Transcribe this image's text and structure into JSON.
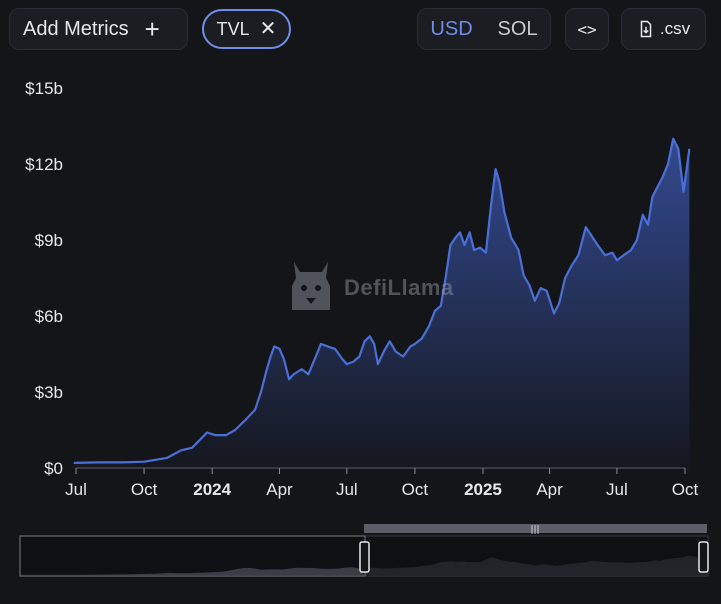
{
  "toolbar": {
    "add_metrics_label": "Add Metrics",
    "add_metrics_icon": "plus-icon",
    "metric_chip_label": "TVL",
    "metric_chip_icon": "close-icon",
    "currency_options": [
      "USD",
      "SOL"
    ],
    "currency_selected": "USD",
    "embed_icon": "code-icon",
    "embed_label": "<>",
    "csv_icon": "file-download-icon",
    "csv_label": ".csv"
  },
  "watermark": {
    "text": "DefiLlama",
    "icon": "llama-logo"
  },
  "colors": {
    "accent": "#6f8ee6",
    "line": "#4a6fd8",
    "background": "#141519"
  },
  "chart_data": {
    "type": "area",
    "title": "",
    "xlabel": "",
    "ylabel": "",
    "ylim": [
      0,
      15
    ],
    "y_ticks": [
      0,
      3,
      6,
      9,
      12,
      15
    ],
    "y_tick_labels": [
      "$0",
      "$3b",
      "$6b",
      "$9b",
      "$12b",
      "$15b"
    ],
    "x_ticks": [
      "2023-07-01",
      "2023-10-01",
      "2024-01-01",
      "2024-04-01",
      "2024-07-01",
      "2024-10-01",
      "2025-01-01",
      "2025-04-01",
      "2025-07-01",
      "2025-10-01"
    ],
    "x_tick_labels": [
      "Jul",
      "Oct",
      "2024",
      "Apr",
      "Jul",
      "Oct",
      "2025",
      "Apr",
      "Jul",
      "Oct"
    ],
    "x_tick_bold": [
      false,
      false,
      true,
      false,
      false,
      false,
      true,
      false,
      false,
      false
    ],
    "grid": false,
    "legend": "none",
    "series": [
      {
        "values_unit": "USD billions",
        "points": [
          [
            "2023-06-28",
            0.2
          ],
          [
            "2023-08-01",
            0.22
          ],
          [
            "2023-09-01",
            0.22
          ],
          [
            "2023-10-01",
            0.25
          ],
          [
            "2023-11-01",
            0.4
          ],
          [
            "2023-11-20",
            0.7
          ],
          [
            "2023-12-05",
            0.8
          ],
          [
            "2023-12-15",
            1.1
          ],
          [
            "2023-12-25",
            1.4
          ],
          [
            "2024-01-05",
            1.3
          ],
          [
            "2024-01-20",
            1.3
          ],
          [
            "2024-02-01",
            1.5
          ],
          [
            "2024-02-15",
            1.9
          ],
          [
            "2024-02-28",
            2.3
          ],
          [
            "2024-03-07",
            3.0
          ],
          [
            "2024-03-14",
            3.8
          ],
          [
            "2024-03-20",
            4.4
          ],
          [
            "2024-03-25",
            4.8
          ],
          [
            "2024-04-01",
            4.7
          ],
          [
            "2024-04-07",
            4.3
          ],
          [
            "2024-04-14",
            3.5
          ],
          [
            "2024-04-20",
            3.7
          ],
          [
            "2024-05-01",
            3.9
          ],
          [
            "2024-05-10",
            3.7
          ],
          [
            "2024-05-20",
            4.4
          ],
          [
            "2024-05-27",
            4.9
          ],
          [
            "2024-06-05",
            4.8
          ],
          [
            "2024-06-15",
            4.7
          ],
          [
            "2024-06-25",
            4.3
          ],
          [
            "2024-07-01",
            4.1
          ],
          [
            "2024-07-10",
            4.2
          ],
          [
            "2024-07-18",
            4.4
          ],
          [
            "2024-07-25",
            5.0
          ],
          [
            "2024-08-01",
            5.2
          ],
          [
            "2024-08-07",
            4.9
          ],
          [
            "2024-08-12",
            4.1
          ],
          [
            "2024-08-20",
            4.6
          ],
          [
            "2024-08-28",
            5.0
          ],
          [
            "2024-09-05",
            4.6
          ],
          [
            "2024-09-15",
            4.4
          ],
          [
            "2024-09-25",
            4.8
          ],
          [
            "2024-10-01",
            4.9
          ],
          [
            "2024-10-10",
            5.1
          ],
          [
            "2024-10-20",
            5.6
          ],
          [
            "2024-10-28",
            6.2
          ],
          [
            "2024-11-05",
            6.4
          ],
          [
            "2024-11-12",
            7.6
          ],
          [
            "2024-11-18",
            8.8
          ],
          [
            "2024-11-25",
            9.1
          ],
          [
            "2024-12-01",
            9.3
          ],
          [
            "2024-12-07",
            8.8
          ],
          [
            "2024-12-14",
            9.3
          ],
          [
            "2024-12-20",
            8.6
          ],
          [
            "2024-12-28",
            8.7
          ],
          [
            "2025-01-05",
            8.5
          ],
          [
            "2025-01-12",
            10.4
          ],
          [
            "2025-01-18",
            11.8
          ],
          [
            "2025-01-23",
            11.3
          ],
          [
            "2025-01-30",
            10.1
          ],
          [
            "2025-02-08",
            9.1
          ],
          [
            "2025-02-18",
            8.6
          ],
          [
            "2025-02-25",
            7.6
          ],
          [
            "2025-03-05",
            7.2
          ],
          [
            "2025-03-12",
            6.6
          ],
          [
            "2025-03-20",
            7.1
          ],
          [
            "2025-03-28",
            7.0
          ],
          [
            "2025-04-07",
            6.1
          ],
          [
            "2025-04-14",
            6.5
          ],
          [
            "2025-04-22",
            7.5
          ],
          [
            "2025-05-01",
            8.0
          ],
          [
            "2025-05-10",
            8.4
          ],
          [
            "2025-05-20",
            9.5
          ],
          [
            "2025-05-27",
            9.2
          ],
          [
            "2025-06-05",
            8.8
          ],
          [
            "2025-06-15",
            8.4
          ],
          [
            "2025-06-25",
            8.5
          ],
          [
            "2025-07-01",
            8.2
          ],
          [
            "2025-07-10",
            8.4
          ],
          [
            "2025-07-20",
            8.6
          ],
          [
            "2025-07-28",
            9.0
          ],
          [
            "2025-08-05",
            10.0
          ],
          [
            "2025-08-12",
            9.6
          ],
          [
            "2025-08-18",
            10.7
          ],
          [
            "2025-08-25",
            11.1
          ],
          [
            "2025-09-01",
            11.5
          ],
          [
            "2025-09-08",
            12.0
          ],
          [
            "2025-09-15",
            13.0
          ],
          [
            "2025-09-22",
            12.6
          ],
          [
            "2025-09-29",
            10.9
          ],
          [
            "2025-10-07",
            12.6
          ]
        ]
      }
    ]
  }
}
